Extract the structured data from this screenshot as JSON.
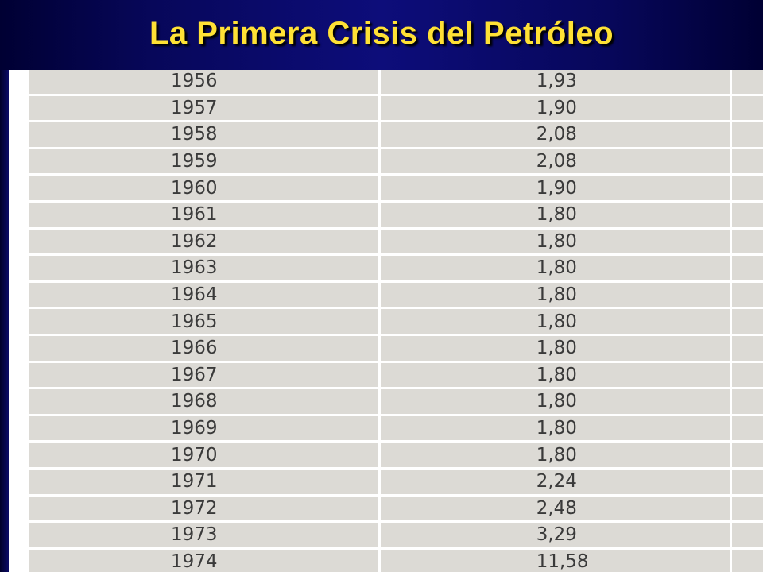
{
  "slide": {
    "title": "La Primera Crisis del Petróleo"
  },
  "table": {
    "rows": [
      {
        "year": "1956",
        "value": "1,93"
      },
      {
        "year": "1957",
        "value": "1,90"
      },
      {
        "year": "1958",
        "value": "2,08"
      },
      {
        "year": "1959",
        "value": "2,08"
      },
      {
        "year": "1960",
        "value": "1,90"
      },
      {
        "year": "1961",
        "value": "1,80"
      },
      {
        "year": "1962",
        "value": "1,80"
      },
      {
        "year": "1963",
        "value": "1,80"
      },
      {
        "year": "1964",
        "value": "1,80"
      },
      {
        "year": "1965",
        "value": "1,80"
      },
      {
        "year": "1966",
        "value": "1,80"
      },
      {
        "year": "1967",
        "value": "1,80"
      },
      {
        "year": "1968",
        "value": "1,80"
      },
      {
        "year": "1969",
        "value": "1,80"
      },
      {
        "year": "1970",
        "value": "1,80"
      },
      {
        "year": "1971",
        "value": "2,24"
      },
      {
        "year": "1972",
        "value": "2,48"
      },
      {
        "year": "1973",
        "value": "3,29"
      },
      {
        "year": "1974",
        "value": "11,58"
      }
    ]
  },
  "colors": {
    "title_text": "#ffe135",
    "title_bar": "#0d0d7a",
    "cell_background": "#dcdad5",
    "cell_text": "#3a3a3a"
  }
}
